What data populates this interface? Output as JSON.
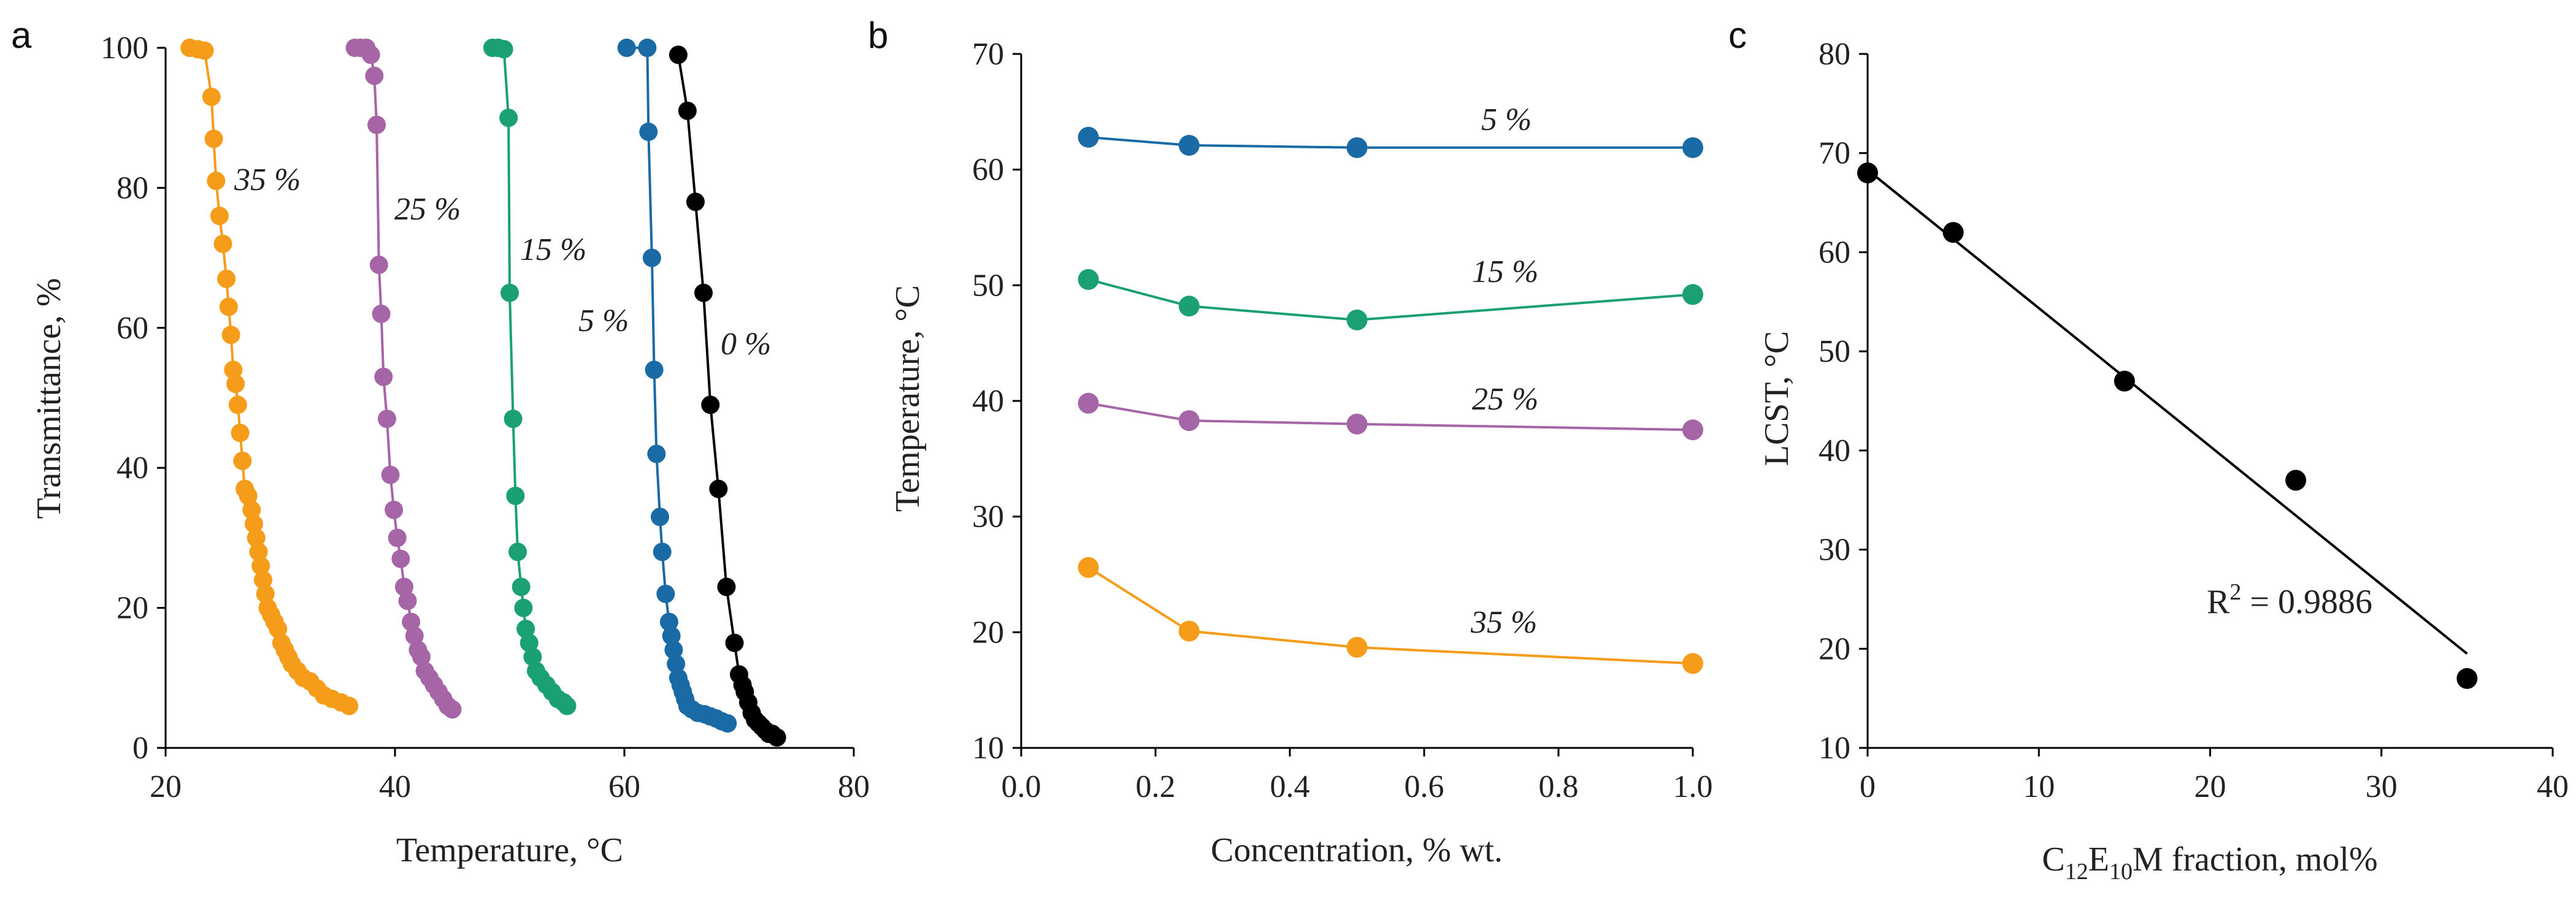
{
  "colors": {
    "s35": "#f59c1a",
    "s25": "#a565a6",
    "s15": "#1aa074",
    "s5": "#1a6aa5",
    "s0": "#000000"
  },
  "chart_data": [
    {
      "panel": "a",
      "type": "scatter",
      "xlabel": "Temperature, °C",
      "ylabel": "Transmittance, %",
      "xlim": [
        20,
        80
      ],
      "ylim": [
        0,
        100
      ],
      "xticks": [
        "20",
        "40",
        "60",
        "80"
      ],
      "yticks": [
        "0",
        "20",
        "40",
        "60",
        "80",
        "100"
      ],
      "series": [
        {
          "name": "35 %",
          "color": "#f59c1a",
          "points": [
            [
              22.1,
              100
            ],
            [
              22.8,
              99.8
            ],
            [
              23.4,
              99.6
            ],
            [
              24.0,
              93
            ],
            [
              24.2,
              87
            ],
            [
              24.4,
              81
            ],
            [
              24.7,
              76
            ],
            [
              25.0,
              72
            ],
            [
              25.3,
              67
            ],
            [
              25.5,
              63
            ],
            [
              25.7,
              59
            ],
            [
              25.9,
              54
            ],
            [
              26.1,
              52
            ],
            [
              26.3,
              49
            ],
            [
              26.5,
              45
            ],
            [
              26.7,
              41
            ],
            [
              26.9,
              37
            ],
            [
              27.2,
              36
            ],
            [
              27.5,
              34
            ],
            [
              27.7,
              32
            ],
            [
              27.9,
              30
            ],
            [
              28.1,
              28
            ],
            [
              28.3,
              26
            ],
            [
              28.5,
              24
            ],
            [
              28.7,
              22
            ],
            [
              28.9,
              20
            ],
            [
              29.2,
              19
            ],
            [
              29.5,
              18
            ],
            [
              29.8,
              17
            ],
            [
              30.1,
              15
            ],
            [
              30.4,
              14
            ],
            [
              30.7,
              13
            ],
            [
              31.0,
              12
            ],
            [
              31.5,
              11
            ],
            [
              32.0,
              10
            ],
            [
              32.6,
              9.5
            ],
            [
              33.2,
              8.5
            ],
            [
              33.8,
              7.5
            ],
            [
              34.5,
              7
            ],
            [
              35.3,
              6.5
            ],
            [
              36.0,
              6
            ]
          ]
        },
        {
          "name": "25 %",
          "color": "#a565a6",
          "points": [
            [
              36.5,
              100
            ],
            [
              37.0,
              100
            ],
            [
              37.5,
              100
            ],
            [
              37.9,
              99
            ],
            [
              38.2,
              96
            ],
            [
              38.4,
              89
            ],
            [
              38.6,
              69
            ],
            [
              38.8,
              62
            ],
            [
              39.0,
              53
            ],
            [
              39.3,
              47
            ],
            [
              39.6,
              39
            ],
            [
              39.9,
              34
            ],
            [
              40.2,
              30
            ],
            [
              40.5,
              27
            ],
            [
              40.8,
              23
            ],
            [
              41.1,
              21
            ],
            [
              41.4,
              18
            ],
            [
              41.7,
              16
            ],
            [
              42.0,
              14
            ],
            [
              42.3,
              13
            ],
            [
              42.6,
              11
            ],
            [
              43.0,
              10
            ],
            [
              43.4,
              9
            ],
            [
              43.8,
              8
            ],
            [
              44.2,
              7
            ],
            [
              44.6,
              6
            ],
            [
              45.0,
              5.5
            ]
          ]
        },
        {
          "name": "15 %",
          "color": "#1aa074",
          "points": [
            [
              48.5,
              100
            ],
            [
              49.0,
              100
            ],
            [
              49.5,
              99.8
            ],
            [
              49.9,
              90
            ],
            [
              50.0,
              65
            ],
            [
              50.3,
              47
            ],
            [
              50.5,
              36
            ],
            [
              50.7,
              28
            ],
            [
              51.0,
              23
            ],
            [
              51.2,
              20
            ],
            [
              51.4,
              17
            ],
            [
              51.7,
              15
            ],
            [
              52.0,
              13
            ],
            [
              52.3,
              11
            ],
            [
              52.7,
              10
            ],
            [
              53.2,
              9
            ],
            [
              53.7,
              8
            ],
            [
              54.2,
              7
            ],
            [
              54.7,
              6.5
            ],
            [
              55.0,
              6
            ]
          ]
        },
        {
          "name": "5 %",
          "color": "#1a6aa5",
          "points": [
            [
              60.2,
              100
            ],
            [
              62.0,
              100
            ],
            [
              62.1,
              88
            ],
            [
              62.4,
              70
            ],
            [
              62.6,
              54
            ],
            [
              62.8,
              42
            ],
            [
              63.1,
              33
            ],
            [
              63.3,
              28
            ],
            [
              63.6,
              22
            ],
            [
              63.9,
              18
            ],
            [
              64.1,
              16
            ],
            [
              64.3,
              14
            ],
            [
              64.5,
              12
            ],
            [
              64.7,
              10
            ],
            [
              64.9,
              9
            ],
            [
              65.1,
              8
            ],
            [
              65.3,
              7
            ],
            [
              65.5,
              6
            ],
            [
              65.9,
              5.5
            ],
            [
              66.4,
              5
            ],
            [
              67.0,
              4.8
            ],
            [
              67.5,
              4.5
            ],
            [
              68.0,
              4.2
            ],
            [
              68.5,
              3.8
            ],
            [
              69.0,
              3.5
            ]
          ]
        },
        {
          "name": "0 %",
          "color": "#000000",
          "points": [
            [
              64.7,
              99
            ],
            [
              65.5,
              91
            ],
            [
              66.2,
              78
            ],
            [
              66.9,
              65
            ],
            [
              67.5,
              49
            ],
            [
              68.2,
              37
            ],
            [
              68.9,
              23
            ],
            [
              69.6,
              15
            ],
            [
              70.0,
              10.5
            ],
            [
              70.3,
              9
            ],
            [
              70.5,
              8
            ],
            [
              70.8,
              6.5
            ],
            [
              71.1,
              5
            ],
            [
              71.4,
              4
            ],
            [
              71.7,
              3.5
            ],
            [
              72.0,
              3
            ],
            [
              72.3,
              2.5
            ],
            [
              72.6,
              2
            ],
            [
              72.9,
              2
            ],
            [
              73.3,
              1.5
            ]
          ]
        }
      ]
    },
    {
      "panel": "b",
      "type": "line",
      "xlabel": "Concentration, % wt.",
      "ylabel": "Temperature, °C",
      "xlim": [
        0,
        1
      ],
      "ylim": [
        10,
        70
      ],
      "xticks": [
        "0.0",
        "0.2",
        "0.4",
        "0.6",
        "0.8",
        "1.0"
      ],
      "yticks": [
        "10",
        "20",
        "30",
        "40",
        "50",
        "60",
        "70"
      ],
      "x": [
        0.1,
        0.25,
        0.5,
        1.0
      ],
      "series": [
        {
          "name": "5 %",
          "color": "#1a6aa5",
          "values": [
            62.8,
            62.1,
            61.9,
            61.9
          ]
        },
        {
          "name": "15 %",
          "color": "#1aa074",
          "values": [
            50.5,
            48.2,
            47.0,
            49.2
          ]
        },
        {
          "name": "25 %",
          "color": "#a565a6",
          "values": [
            39.8,
            38.3,
            38.0,
            37.5
          ]
        },
        {
          "name": "35 %",
          "color": "#f59c1a",
          "values": [
            25.6,
            20.1,
            18.7,
            17.3
          ]
        }
      ]
    },
    {
      "panel": "c",
      "type": "scatter",
      "xlabel": "C12E10M fraction, mol%",
      "ylabel": "LCST, °C",
      "xlim": [
        0,
        40
      ],
      "ylim": [
        10,
        80
      ],
      "xticks": [
        "0",
        "10",
        "20",
        "30",
        "40"
      ],
      "yticks": [
        "10",
        "20",
        "30",
        "40",
        "50",
        "60",
        "70",
        "80"
      ],
      "points": [
        [
          0,
          68
        ],
        [
          5,
          62
        ],
        [
          15,
          47
        ],
        [
          25,
          37
        ],
        [
          35,
          17
        ]
      ],
      "trendline": {
        "x": [
          0,
          35
        ],
        "y": [
          68.3,
          19.5
        ]
      },
      "annotation": "R² = 0.9886"
    }
  ],
  "text": {
    "panel_a": "a",
    "panel_b": "b",
    "panel_c": "c",
    "a_xlabel": "Temperature, °C",
    "a_ylabel": "Transmittance, %",
    "b_xlabel": "Concentration, % wt.",
    "b_ylabel": "Temperature, °C",
    "c_ylabel": "LCST, °C",
    "c_xlabel_c": "C",
    "c_xlabel_12": "12",
    "c_xlabel_e": "E",
    "c_xlabel_10": "10",
    "c_xlabel_rest": "M fraction, mol%",
    "c_r2_main": "R",
    "c_r2_sup": "2",
    "c_r2_value": " = 0.9886",
    "a_lab35": "35 %",
    "a_lab25": "25 %",
    "a_lab15": "15 %",
    "a_lab5": "5 %",
    "a_lab0": "0 %",
    "b_lab5": "5 %",
    "b_lab15": "15 %",
    "b_lab25": "25 %",
    "b_lab35": "35 %"
  }
}
